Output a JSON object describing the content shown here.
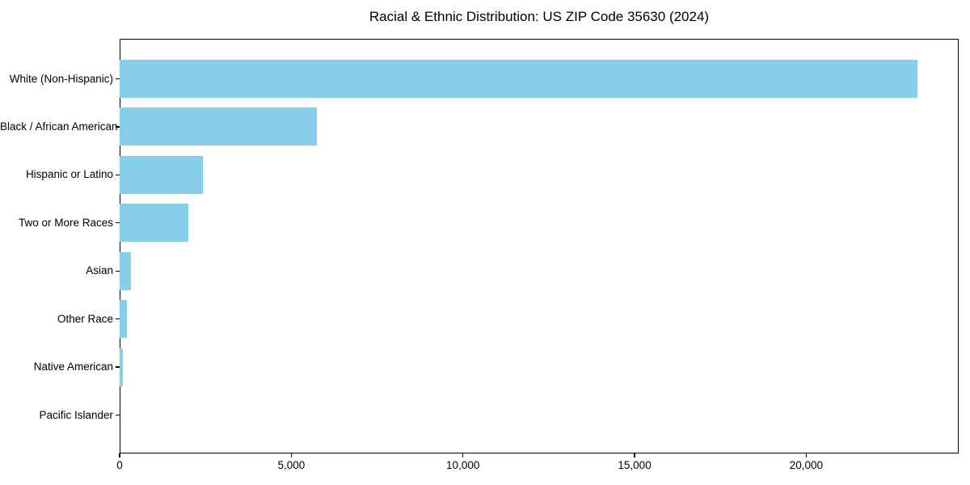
{
  "title": "Racial & Ethnic Distribution: US ZIP Code 35630 (2024)",
  "chart_data": {
    "type": "bar",
    "orientation": "horizontal",
    "title": "Racial & Ethnic Distribution: US ZIP Code 35630 (2024)",
    "categories": [
      "White (Non-Hispanic)",
      "Black / African American",
      "Hispanic or Latino",
      "Two or More Races",
      "Asian",
      "Other Race",
      "Native American",
      "Pacific Islander"
    ],
    "values": [
      23250,
      5750,
      2430,
      2000,
      330,
      210,
      90,
      0
    ],
    "xlabel": "",
    "ylabel": "",
    "x_ticks": [
      0,
      5000,
      10000,
      15000,
      20000
    ],
    "x_tick_labels": [
      "0",
      "5,000",
      "10,000",
      "15,000",
      "20,000"
    ],
    "xlim": [
      0,
      24440
    ],
    "grid": false,
    "legend": null,
    "bar_color": "#87CEEB",
    "axis_color": "#000000",
    "background_color": "#ffffff"
  }
}
